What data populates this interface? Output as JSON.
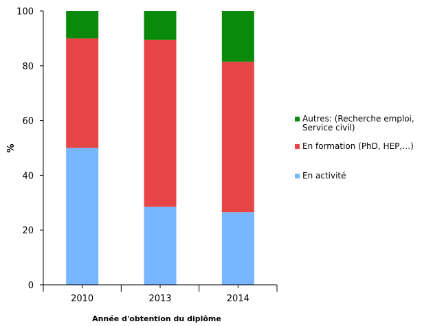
{
  "chart_data": {
    "type": "bar",
    "stacked": true,
    "categories": [
      "2010",
      "2013",
      "2014"
    ],
    "series": [
      {
        "name": "En activité",
        "values": [
          50,
          28.5,
          26.5
        ],
        "color": "#77b7ff"
      },
      {
        "name": "En formation (PhD, HEP,…)",
        "values": [
          40,
          61,
          55
        ],
        "color": "#e84646"
      },
      {
        "name": "Autres: (Recherche emploi, Service civil)",
        "values": [
          10,
          10.5,
          18.5
        ],
        "color": "#0a8a0a"
      }
    ],
    "legend_order": [
      2,
      1,
      0
    ],
    "legend_lines": [
      [
        "Autres: (Recherche emploi,",
        "Service civil)"
      ],
      [
        "En formation (PhD, HEP,…)"
      ],
      [
        "En activité"
      ]
    ],
    "title": "",
    "xlabel": "Année d'obtention du diplôme",
    "ylabel": "%",
    "ylim": [
      0,
      100
    ],
    "yticks": [
      0,
      20,
      40,
      60,
      80,
      100
    ],
    "grid": false,
    "legend_position": "right"
  }
}
